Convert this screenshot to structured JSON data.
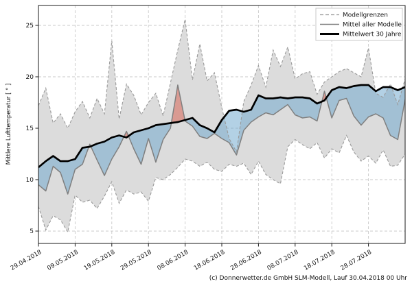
{
  "chart_data": {
    "type": "area",
    "title": "",
    "ylabel": "Mittlere Lufttemperatur [ ° ]",
    "y_ticks": [
      5,
      10,
      15,
      20,
      25
    ],
    "ylim": [
      3.8,
      26.9
    ],
    "xlim_days": [
      0,
      100
    ],
    "x_tick_days": [
      0,
      10,
      20,
      30,
      40,
      50,
      60,
      70,
      80,
      90
    ],
    "x_tick_labels": [
      "29.04.2018",
      "09.05.2018",
      "19.05.2018",
      "29.05.2018",
      "08.06.2018",
      "18.06.2018",
      "28.06.2018",
      "08.07.2018",
      "18.07.2018",
      "28.07.2018"
    ],
    "grid": true,
    "legend_position": "top-right",
    "legend_entries": [
      {
        "label": "Modellgrenzen",
        "style": "dashed-gray"
      },
      {
        "label": "Mittel aller Modelle",
        "style": "solid-gray"
      },
      {
        "label": "Mittelwert 30 Jahre",
        "style": "thick-black"
      }
    ],
    "colors": {
      "band_fill": "#dcdcdc",
      "band_edge": "#999999",
      "model_mean_line": "#7f7f7f",
      "climate_mean_line": "#000000",
      "below_normal_fill": "rgba(104,164,204,0.5)",
      "above_normal_fill": "rgba(215,100,85,0.55)",
      "grid_line": "#c9c9c9",
      "axis_border": "#1a1a1a",
      "tick_text": "#111111"
    },
    "days": [
      0,
      2,
      4,
      6,
      8,
      10,
      12,
      14,
      16,
      18,
      20,
      22,
      24,
      26,
      28,
      30,
      32,
      34,
      36,
      38,
      40,
      42,
      44,
      46,
      48,
      50,
      52,
      54,
      56,
      58,
      60,
      62,
      64,
      66,
      68,
      70,
      72,
      74,
      76,
      78,
      80,
      82,
      84,
      86,
      88,
      90,
      92,
      94,
      96,
      98,
      100
    ],
    "series": [
      {
        "name": "Modellgrenzen (obere Grenze)",
        "role": "upper_bound",
        "style": "dashed-gray",
        "values": [
          17.2,
          18.9,
          15.5,
          16.4,
          15.0,
          16.6,
          17.6,
          16.0,
          17.9,
          16.4,
          23.5,
          15.9,
          19.3,
          18.2,
          16.3,
          17.5,
          18.4,
          16.2,
          19.4,
          22.6,
          25.6,
          19.7,
          23.2,
          19.6,
          20.4,
          17.0,
          14.0,
          12.7,
          17.6,
          19.2,
          21.1,
          19.0,
          22.6,
          21.0,
          22.9,
          19.8,
          20.3,
          20.5,
          18.3,
          19.5,
          20.0,
          20.5,
          20.8,
          20.4,
          20.0,
          22.8,
          18.4,
          18.0,
          19.3,
          17.3,
          19.8
        ]
      },
      {
        "name": "Modellgrenzen (untere Grenze)",
        "role": "lower_bound",
        "style": "dashed-gray",
        "values": [
          7.4,
          5.1,
          6.5,
          6.1,
          4.9,
          8.5,
          7.8,
          8.0,
          7.2,
          8.4,
          9.8,
          7.7,
          9.0,
          8.6,
          8.8,
          7.9,
          10.2,
          10.0,
          10.5,
          11.2,
          12.0,
          11.8,
          11.3,
          11.7,
          11.0,
          10.8,
          11.5,
          11.3,
          11.6,
          10.5,
          11.8,
          10.5,
          10.0,
          9.6,
          13.2,
          13.9,
          13.4,
          13.0,
          13.6,
          12.1,
          13.0,
          12.6,
          14.3,
          12.7,
          11.8,
          12.3,
          11.6,
          12.9,
          11.3,
          11.4,
          12.5
        ]
      },
      {
        "name": "Mittel aller Modelle",
        "role": "model_mean",
        "style": "solid-gray",
        "values": [
          9.5,
          8.9,
          11.3,
          10.7,
          8.6,
          11.0,
          11.5,
          13.45,
          11.9,
          10.4,
          12.0,
          13.2,
          14.7,
          13.0,
          11.5,
          14.0,
          11.7,
          13.9,
          15.0,
          19.2,
          15.7,
          15.2,
          14.2,
          14.0,
          14.5,
          14.0,
          13.6,
          12.4,
          14.8,
          15.6,
          16.1,
          16.5,
          16.3,
          16.8,
          17.3,
          16.3,
          16.0,
          16.1,
          15.7,
          18.6,
          16.0,
          17.7,
          17.9,
          16.2,
          15.3,
          16.1,
          16.4,
          16.0,
          14.3,
          13.9,
          17.8
        ]
      },
      {
        "name": "Mittelwert 30 Jahre",
        "role": "climate_mean",
        "style": "thick-black",
        "values": [
          11.2,
          11.8,
          12.3,
          11.8,
          11.8,
          12.0,
          13.1,
          13.2,
          13.5,
          13.7,
          14.1,
          14.3,
          14.1,
          14.6,
          14.8,
          15.0,
          15.3,
          15.4,
          15.5,
          15.6,
          15.8,
          16.0,
          15.3,
          15.0,
          14.6,
          15.8,
          16.7,
          16.8,
          16.6,
          16.8,
          18.2,
          17.9,
          17.9,
          18.0,
          17.9,
          18.0,
          18.0,
          17.9,
          17.4,
          17.7,
          18.7,
          19.0,
          18.9,
          19.1,
          19.2,
          19.2,
          18.6,
          19.0,
          19.0,
          18.7,
          19.0
        ]
      }
    ]
  },
  "footer": {
    "credit": "(c) Donnerwetter.de GmbH SLM-Modell, Lauf 30.04.2018 00 Uhr"
  }
}
